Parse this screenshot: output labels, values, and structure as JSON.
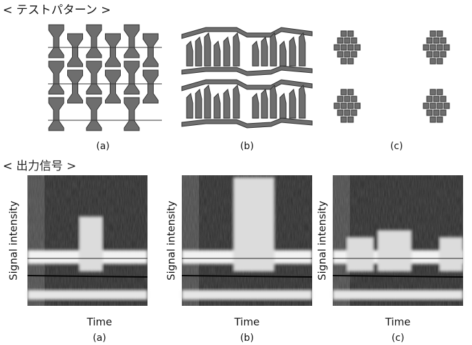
{
  "test_patterns": {
    "heading": "< テストパターン >",
    "captions": [
      "(a)",
      "(b)",
      "(c)"
    ]
  },
  "output_signals": {
    "heading": "< 出力信号 >",
    "panels": [
      {
        "y_label": "Signal intensity",
        "x_label": "Time",
        "caption": "(a)"
      },
      {
        "y_label": "Signal intensity",
        "x_label": "Time",
        "caption": "(b)"
      },
      {
        "y_label": "Signal intensity",
        "x_label": "Time",
        "caption": "(c)"
      }
    ]
  }
}
